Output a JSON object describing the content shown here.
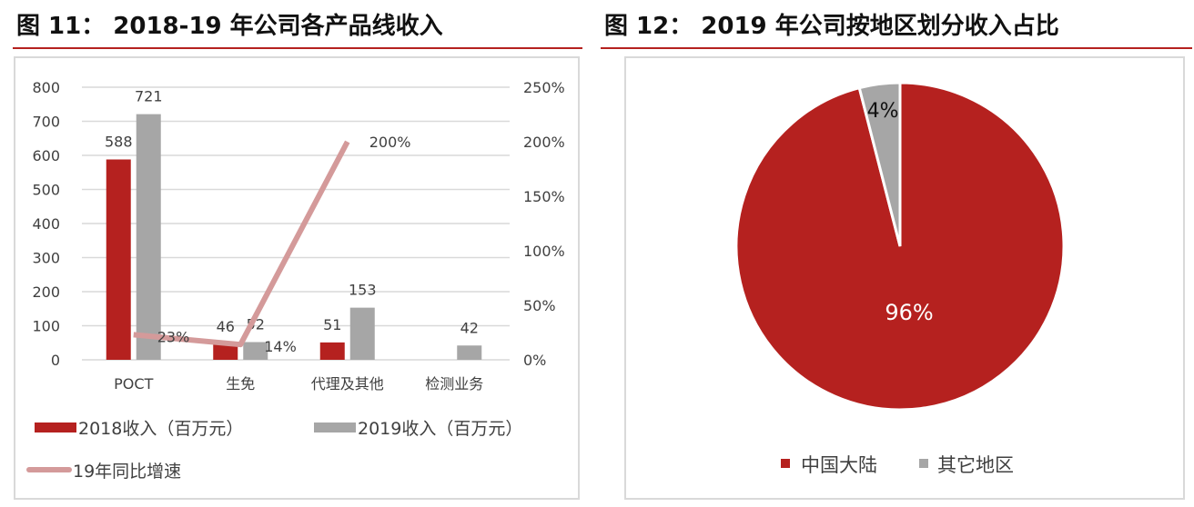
{
  "figures": [
    {
      "title": "图 11： 2018-19 年公司各产品线收入"
    },
    {
      "title": "图 12： 2019 年公司按地区划分收入占比"
    }
  ],
  "chart_data": [
    {
      "type": "bar",
      "categories": [
        "POCT",
        "生免",
        "代理及其他",
        "检测业务"
      ],
      "series": [
        {
          "name": "2018收入（百万元）",
          "values": [
            588,
            46,
            51,
            null
          ],
          "color": "#b5211f",
          "axis": "left"
        },
        {
          "name": "2019收入（百万元）",
          "values": [
            721,
            52,
            153,
            42
          ],
          "color": "#a6a6a6",
          "axis": "left"
        },
        {
          "name": "19年同比增速",
          "type": "line",
          "values": [
            23,
            14,
            200,
            null
          ],
          "labels": [
            "23%",
            "14%",
            "200%",
            ""
          ],
          "color": "#d49a9a",
          "axis": "right"
        }
      ],
      "yticks_left": [
        "0",
        "100",
        "200",
        "300",
        "400",
        "500",
        "600",
        "700",
        "800"
      ],
      "ylim_left": [
        0,
        800
      ],
      "yticks_right": [
        "0%",
        "50%",
        "100%",
        "150%",
        "200%",
        "250%"
      ],
      "ylim_right": [
        0,
        250
      ],
      "grid": true,
      "legend": "bottom"
    },
    {
      "type": "pie",
      "slices": [
        {
          "name": "中国大陆",
          "value": 96,
          "label": "96%",
          "color": "#b5211f"
        },
        {
          "name": "其它地区",
          "value": 4,
          "label": "4%",
          "color": "#a6a6a6"
        }
      ],
      "legend": "bottom"
    }
  ]
}
